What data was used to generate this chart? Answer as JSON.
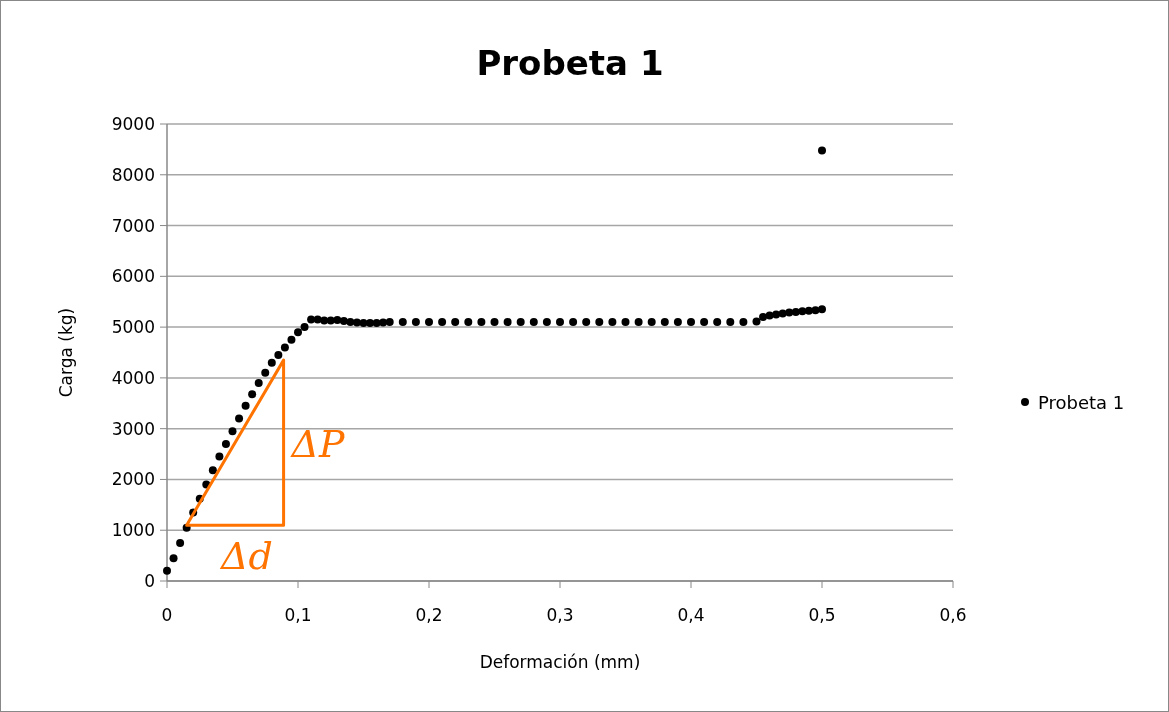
{
  "chart_data": {
    "type": "scatter",
    "title": "Probeta 1",
    "xlabel": "Deformación (mm)",
    "ylabel": "Carga (kg)",
    "xlim": [
      0,
      0.6
    ],
    "xticks": [
      0,
      {
        "value": 0.1,
        "label": "0,1"
      },
      {
        "value": 0.2,
        "label": "0,2"
      },
      {
        "value": 0.3,
        "label": "0,3"
      },
      {
        "value": 0.4,
        "label": "0,4"
      },
      {
        "value": 0.5,
        "label": "0,5"
      },
      {
        "value": 0.6,
        "label": "0,6"
      }
    ],
    "ylim": [
      0,
      9000
    ],
    "yticks": [
      0,
      1000,
      2000,
      3000,
      4000,
      5000,
      6000,
      7000,
      8000,
      9000
    ],
    "grid": "y",
    "legend": "right",
    "marker": "circle",
    "annotations": [
      "ΔP",
      "Δd"
    ],
    "series": [
      {
        "name": "Probeta 1",
        "color": "#000000",
        "x": [
          0,
          0.005,
          0.01,
          0.015,
          0.02,
          0.025,
          0.03,
          0.035,
          0.04,
          0.045,
          0.05,
          0.055,
          0.06,
          0.065,
          0.07,
          0.075,
          0.08,
          0.085,
          0.09,
          0.095,
          0.1,
          0.105,
          0.11,
          0.115,
          0.12,
          0.125,
          0.13,
          0.135,
          0.14,
          0.145,
          0.15,
          0.155,
          0.16,
          0.165,
          0.17,
          0.18,
          0.19,
          0.2,
          0.21,
          0.22,
          0.23,
          0.24,
          0.25,
          0.26,
          0.27,
          0.28,
          0.29,
          0.3,
          0.31,
          0.32,
          0.33,
          0.34,
          0.35,
          0.36,
          0.37,
          0.38,
          0.39,
          0.4,
          0.41,
          0.42,
          0.43,
          0.44,
          0.45,
          0.455,
          0.46,
          0.465,
          0.47,
          0.475,
          0.48,
          0.485,
          0.49,
          0.495,
          0.5,
          0.5
        ],
        "values": [
          200,
          450,
          750,
          1050,
          1350,
          1620,
          1900,
          2180,
          2450,
          2700,
          2950,
          3200,
          3450,
          3680,
          3900,
          4100,
          4300,
          4450,
          4600,
          4750,
          4900,
          5000,
          5150,
          5150,
          5130,
          5130,
          5140,
          5120,
          5100,
          5090,
          5080,
          5080,
          5080,
          5090,
          5100,
          5100,
          5100,
          5100,
          5100,
          5100,
          5100,
          5100,
          5100,
          5100,
          5100,
          5100,
          5100,
          5100,
          5100,
          5100,
          5100,
          5100,
          5100,
          5100,
          5100,
          5100,
          5100,
          5100,
          5100,
          5100,
          5100,
          5100,
          5110,
          5200,
          5230,
          5250,
          5270,
          5290,
          5300,
          5310,
          5320,
          5330,
          5350,
          8480
        ]
      }
    ]
  }
}
